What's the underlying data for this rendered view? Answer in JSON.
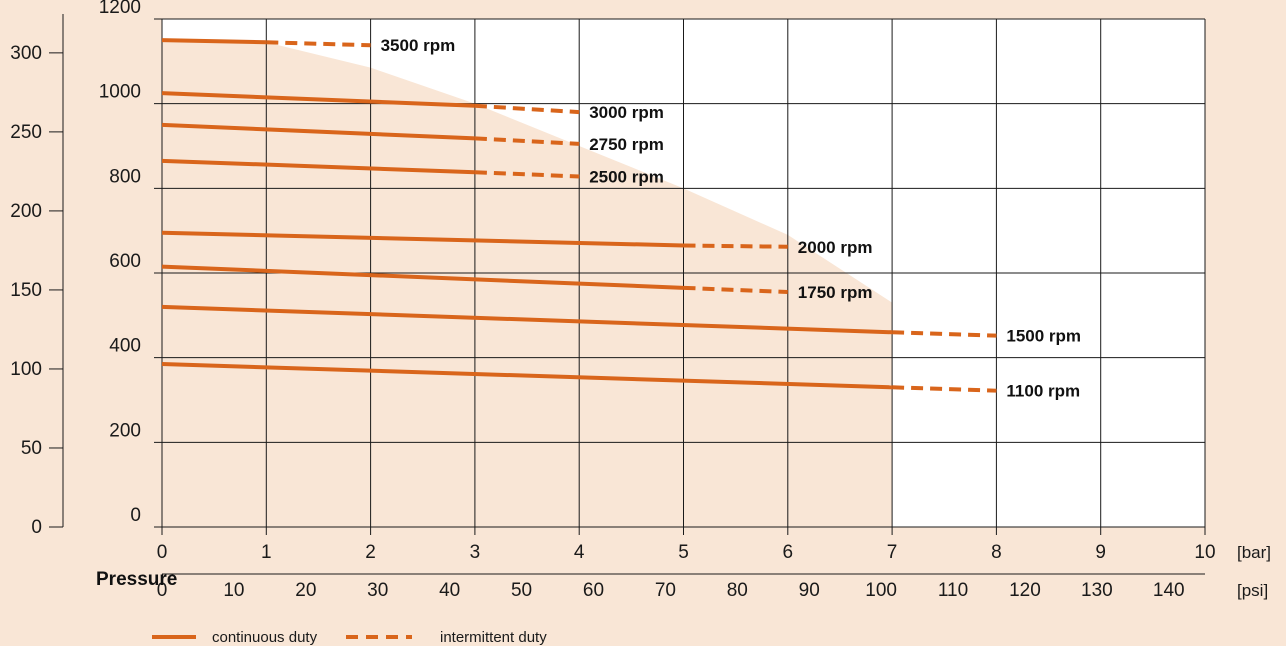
{
  "colors": {
    "background": "#f9e6d6",
    "plot_background": "#ffffff",
    "shaded_region": "#f9e6d6",
    "line": "#d9651b",
    "grid": "#1a1a1a"
  },
  "chart_data": {
    "type": "line",
    "x_bar": {
      "ticks": [
        0,
        1,
        2,
        3,
        4,
        5,
        6,
        7,
        8,
        9,
        10
      ],
      "unit": "[bar]",
      "xlim": [
        0,
        10
      ]
    },
    "x_psi": {
      "ticks": [
        0,
        10,
        20,
        30,
        40,
        50,
        60,
        70,
        80,
        90,
        100,
        110,
        120,
        130,
        140
      ],
      "unit": "[psi]"
    },
    "x_title": "Pressure",
    "y_left": {
      "ticks": [
        0,
        50,
        100,
        150,
        200,
        250,
        300
      ]
    },
    "y_right": {
      "ticks": [
        0,
        200,
        400,
        600,
        800,
        1000,
        1200
      ],
      "ylim": [
        0,
        1200
      ]
    },
    "grid": true,
    "series": [
      {
        "name": "3500 rpm",
        "continuous": [
          [
            0,
            1150
          ],
          [
            1,
            1145
          ]
        ],
        "intermittent": [
          [
            1,
            1145
          ],
          [
            2,
            1138
          ]
        ]
      },
      {
        "name": "3000 rpm",
        "continuous": [
          [
            0,
            1025
          ],
          [
            3,
            995
          ]
        ],
        "intermittent": [
          [
            3,
            995
          ],
          [
            4,
            980
          ]
        ]
      },
      {
        "name": "2750 rpm",
        "continuous": [
          [
            0,
            950
          ],
          [
            3,
            918
          ]
        ],
        "intermittent": [
          [
            3,
            918
          ],
          [
            4,
            905
          ]
        ]
      },
      {
        "name": "2500 rpm",
        "continuous": [
          [
            0,
            865
          ],
          [
            3,
            838
          ]
        ],
        "intermittent": [
          [
            3,
            838
          ],
          [
            4,
            828
          ]
        ]
      },
      {
        "name": "2000 rpm",
        "continuous": [
          [
            0,
            695
          ],
          [
            5,
            665
          ]
        ],
        "intermittent": [
          [
            5,
            665
          ],
          [
            6,
            662
          ]
        ]
      },
      {
        "name": "1750 rpm",
        "continuous": [
          [
            0,
            615
          ],
          [
            5,
            565
          ]
        ],
        "intermittent": [
          [
            5,
            565
          ],
          [
            6,
            555
          ]
        ]
      },
      {
        "name": "1500 rpm",
        "continuous": [
          [
            0,
            520
          ],
          [
            7,
            460
          ]
        ],
        "intermittent": [
          [
            7,
            460
          ],
          [
            8,
            452
          ]
        ]
      },
      {
        "name": "1100 rpm",
        "continuous": [
          [
            0,
            385
          ],
          [
            7,
            330
          ]
        ],
        "intermittent": [
          [
            7,
            330
          ],
          [
            8,
            322
          ]
        ]
      }
    ],
    "shaded_boundary": [
      [
        0,
        1150
      ],
      [
        1,
        1145
      ],
      [
        2,
        1085
      ],
      [
        3,
        1000
      ],
      [
        4,
        900
      ],
      [
        5,
        800
      ],
      [
        6,
        690
      ],
      [
        7,
        530
      ],
      [
        7,
        0
      ]
    ],
    "legend": {
      "placement": "bottom-left",
      "continuous_label": "continuous duty",
      "intermittent_label": "intermittent duty"
    }
  }
}
